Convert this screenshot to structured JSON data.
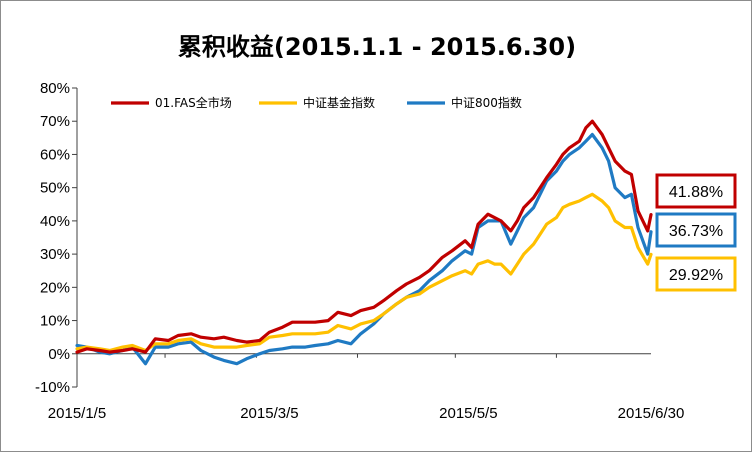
{
  "chart_data": {
    "type": "line",
    "title": "累积收益(2015.1.1 - 2015.6.30)",
    "ylim": [
      -10,
      80
    ],
    "yticks": [
      "-10%",
      "0%",
      "10%",
      "20%",
      "30%",
      "40%",
      "50%",
      "60%",
      "70%",
      "80%"
    ],
    "xtick_labels": [
      "2015/1/5",
      "2015/3/5",
      "2015/5/5",
      "2015/6/30"
    ],
    "x_range": [
      "2015/1/5",
      "2015/6/30"
    ],
    "grid": false,
    "legend_position": "top-left",
    "series": [
      {
        "name": "01.FAS全市场",
        "color": "#c00000",
        "final_label": "41.88%",
        "points": [
          [
            "2015-01-05",
            0.5
          ],
          [
            "2015-01-08",
            1.5
          ],
          [
            "2015-01-12",
            1
          ],
          [
            "2015-01-15",
            0.5
          ],
          [
            "2015-01-19",
            1
          ],
          [
            "2015-01-22",
            1.5
          ],
          [
            "2015-01-26",
            0.5
          ],
          [
            "2015-01-29",
            4.5
          ],
          [
            "2015-02-02",
            4
          ],
          [
            "2015-02-05",
            5.5
          ],
          [
            "2015-02-09",
            6
          ],
          [
            "2015-02-12",
            5
          ],
          [
            "2015-02-16",
            4.5
          ],
          [
            "2015-02-19",
            5
          ],
          [
            "2015-02-23",
            4
          ],
          [
            "2015-02-26",
            3.5
          ],
          [
            "2015-03-02",
            4
          ],
          [
            "2015-03-05",
            6.5
          ],
          [
            "2015-03-09",
            8
          ],
          [
            "2015-03-12",
            9.5
          ],
          [
            "2015-03-16",
            9.5
          ],
          [
            "2015-03-19",
            9.5
          ],
          [
            "2015-03-23",
            10
          ],
          [
            "2015-03-26",
            12.5
          ],
          [
            "2015-03-30",
            11.5
          ],
          [
            "2015-04-02",
            13
          ],
          [
            "2015-04-06",
            14
          ],
          [
            "2015-04-09",
            16
          ],
          [
            "2015-04-13",
            19
          ],
          [
            "2015-04-16",
            21
          ],
          [
            "2015-04-20",
            23
          ],
          [
            "2015-04-23",
            25
          ],
          [
            "2015-04-27",
            29
          ],
          [
            "2015-04-30",
            31
          ],
          [
            "2015-05-04",
            34
          ],
          [
            "2015-05-06",
            32
          ],
          [
            "2015-05-08",
            39
          ],
          [
            "2015-05-11",
            42
          ],
          [
            "2015-05-13",
            41
          ],
          [
            "2015-05-15",
            40
          ],
          [
            "2015-05-18",
            37
          ],
          [
            "2015-05-20",
            40
          ],
          [
            "2015-05-22",
            44
          ],
          [
            "2015-05-25",
            47
          ],
          [
            "2015-05-27",
            50
          ],
          [
            "2015-05-29",
            53
          ],
          [
            "2015-06-01",
            57
          ],
          [
            "2015-06-03",
            60
          ],
          [
            "2015-06-05",
            62
          ],
          [
            "2015-06-08",
            64
          ],
          [
            "2015-06-10",
            68
          ],
          [
            "2015-06-12",
            70
          ],
          [
            "2015-06-15",
            66
          ],
          [
            "2015-06-17",
            62
          ],
          [
            "2015-06-19",
            58
          ],
          [
            "2015-06-22",
            55
          ],
          [
            "2015-06-24",
            54
          ],
          [
            "2015-06-26",
            43
          ],
          [
            "2015-06-29",
            37
          ],
          [
            "2015-06-30",
            41.88
          ]
        ]
      },
      {
        "name": "中证基金指数",
        "color": "#ffc000",
        "final_label": "29.92%",
        "points": [
          [
            "2015-01-05",
            1.5
          ],
          [
            "2015-01-08",
            2
          ],
          [
            "2015-01-12",
            1.5
          ],
          [
            "2015-01-15",
            1
          ],
          [
            "2015-01-19",
            2
          ],
          [
            "2015-01-22",
            2.5
          ],
          [
            "2015-01-26",
            1
          ],
          [
            "2015-01-29",
            3
          ],
          [
            "2015-02-02",
            3
          ],
          [
            "2015-02-05",
            4
          ],
          [
            "2015-02-09",
            4.5
          ],
          [
            "2015-02-12",
            3
          ],
          [
            "2015-02-16",
            2
          ],
          [
            "2015-02-19",
            2
          ],
          [
            "2015-02-23",
            2
          ],
          [
            "2015-02-26",
            2.5
          ],
          [
            "2015-03-02",
            3
          ],
          [
            "2015-03-05",
            5
          ],
          [
            "2015-03-09",
            5.5
          ],
          [
            "2015-03-12",
            6
          ],
          [
            "2015-03-16",
            6
          ],
          [
            "2015-03-19",
            6
          ],
          [
            "2015-03-23",
            6.5
          ],
          [
            "2015-03-26",
            8.5
          ],
          [
            "2015-03-30",
            7.5
          ],
          [
            "2015-04-02",
            9
          ],
          [
            "2015-04-06",
            10
          ],
          [
            "2015-04-09",
            12
          ],
          [
            "2015-04-13",
            15
          ],
          [
            "2015-04-16",
            17
          ],
          [
            "2015-04-20",
            18
          ],
          [
            "2015-04-23",
            20
          ],
          [
            "2015-04-27",
            22
          ],
          [
            "2015-04-30",
            23.5
          ],
          [
            "2015-05-04",
            25
          ],
          [
            "2015-05-06",
            24
          ],
          [
            "2015-05-08",
            27
          ],
          [
            "2015-05-11",
            28
          ],
          [
            "2015-05-13",
            27
          ],
          [
            "2015-05-15",
            27
          ],
          [
            "2015-05-18",
            24
          ],
          [
            "2015-05-20",
            27
          ],
          [
            "2015-05-22",
            30
          ],
          [
            "2015-05-25",
            33
          ],
          [
            "2015-05-27",
            36
          ],
          [
            "2015-05-29",
            39
          ],
          [
            "2015-06-01",
            41
          ],
          [
            "2015-06-03",
            44
          ],
          [
            "2015-06-05",
            45
          ],
          [
            "2015-06-08",
            46
          ],
          [
            "2015-06-10",
            47
          ],
          [
            "2015-06-12",
            48
          ],
          [
            "2015-06-15",
            46
          ],
          [
            "2015-06-17",
            44
          ],
          [
            "2015-06-19",
            40
          ],
          [
            "2015-06-22",
            38
          ],
          [
            "2015-06-24",
            38
          ],
          [
            "2015-06-26",
            32
          ],
          [
            "2015-06-29",
            27
          ],
          [
            "2015-06-30",
            29.92
          ]
        ]
      },
      {
        "name": "中证800指数",
        "color": "#1f7ac3",
        "final_label": "36.73%",
        "points": [
          [
            "2015-01-05",
            2.5
          ],
          [
            "2015-01-08",
            2
          ],
          [
            "2015-01-12",
            0.5
          ],
          [
            "2015-01-15",
            0
          ],
          [
            "2015-01-19",
            1
          ],
          [
            "2015-01-22",
            2
          ],
          [
            "2015-01-26",
            -3
          ],
          [
            "2015-01-29",
            2
          ],
          [
            "2015-02-02",
            2
          ],
          [
            "2015-02-05",
            3
          ],
          [
            "2015-02-09",
            3.5
          ],
          [
            "2015-02-12",
            1
          ],
          [
            "2015-02-16",
            -1
          ],
          [
            "2015-02-19",
            -2
          ],
          [
            "2015-02-23",
            -3
          ],
          [
            "2015-02-26",
            -1.5
          ],
          [
            "2015-03-02",
            0
          ],
          [
            "2015-03-05",
            1
          ],
          [
            "2015-03-09",
            1.5
          ],
          [
            "2015-03-12",
            2
          ],
          [
            "2015-03-16",
            2
          ],
          [
            "2015-03-19",
            2.5
          ],
          [
            "2015-03-23",
            3
          ],
          [
            "2015-03-26",
            4
          ],
          [
            "2015-03-30",
            3
          ],
          [
            "2015-04-02",
            6
          ],
          [
            "2015-04-06",
            9
          ],
          [
            "2015-04-09",
            12
          ],
          [
            "2015-04-13",
            15
          ],
          [
            "2015-04-16",
            17
          ],
          [
            "2015-04-20",
            19
          ],
          [
            "2015-04-23",
            22
          ],
          [
            "2015-04-27",
            25
          ],
          [
            "2015-04-30",
            28
          ],
          [
            "2015-05-04",
            31
          ],
          [
            "2015-05-06",
            30
          ],
          [
            "2015-05-08",
            38
          ],
          [
            "2015-05-11",
            40
          ],
          [
            "2015-05-13",
            40
          ],
          [
            "2015-05-15",
            40
          ],
          [
            "2015-05-18",
            33
          ],
          [
            "2015-05-20",
            37
          ],
          [
            "2015-05-22",
            41
          ],
          [
            "2015-05-25",
            44
          ],
          [
            "2015-05-27",
            48
          ],
          [
            "2015-05-29",
            52
          ],
          [
            "2015-06-01",
            55
          ],
          [
            "2015-06-03",
            58
          ],
          [
            "2015-06-05",
            60
          ],
          [
            "2015-06-08",
            62
          ],
          [
            "2015-06-10",
            64
          ],
          [
            "2015-06-12",
            66
          ],
          [
            "2015-06-15",
            62
          ],
          [
            "2015-06-17",
            58
          ],
          [
            "2015-06-19",
            50
          ],
          [
            "2015-06-22",
            47
          ],
          [
            "2015-06-24",
            48
          ],
          [
            "2015-06-26",
            38
          ],
          [
            "2015-06-29",
            30
          ],
          [
            "2015-06-30",
            36.73
          ]
        ]
      }
    ]
  }
}
